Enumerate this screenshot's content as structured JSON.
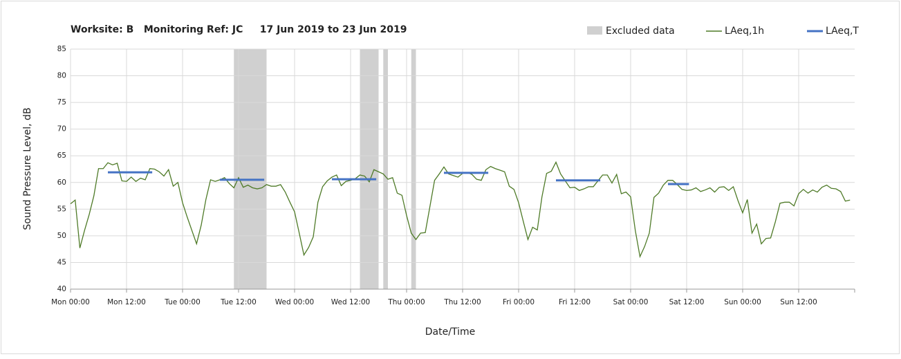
{
  "chart_data": {
    "type": "line",
    "title": "Worksite: B   Monitoring Ref: JC     17 Jun 2019 to 23 Jun 2019",
    "xlabel": "Date/Time",
    "ylabel": "Sound Pressure Level, dB",
    "xlim": [
      0,
      168
    ],
    "ylim": [
      40,
      85
    ],
    "yticks": [
      40,
      45,
      50,
      55,
      60,
      65,
      70,
      75,
      80,
      85
    ],
    "xticks": [
      {
        "value": 0,
        "label": "Mon 00:00"
      },
      {
        "value": 12,
        "label": "Mon 12:00"
      },
      {
        "value": 24,
        "label": "Tue 00:00"
      },
      {
        "value": 36,
        "label": "Tue 12:00"
      },
      {
        "value": 48,
        "label": "Wed 00:00"
      },
      {
        "value": 60,
        "label": "Wed 12:00"
      },
      {
        "value": 72,
        "label": "Thu 00:00"
      },
      {
        "value": 84,
        "label": "Thu 12:00"
      },
      {
        "value": 96,
        "label": "Fri 00:00"
      },
      {
        "value": 108,
        "label": "Fri 12:00"
      },
      {
        "value": 120,
        "label": "Sat 00:00"
      },
      {
        "value": 132,
        "label": "Sat 12:00"
      },
      {
        "value": 144,
        "label": "Sun 00:00"
      },
      {
        "value": 156,
        "label": "Sun 12:00"
      }
    ],
    "grid": true,
    "excluded": {
      "name": "Excluded data",
      "color": "#d0d0d0",
      "ranges": [
        [
          35,
          42
        ],
        [
          62,
          66
        ],
        [
          67,
          68
        ],
        [
          73,
          74
        ]
      ]
    },
    "series": [
      {
        "name": "LAeq,1h",
        "color": "#4e7a27",
        "x": [
          0,
          1,
          2,
          3,
          4,
          5,
          6,
          7,
          8,
          9,
          10,
          11,
          12,
          13,
          14,
          15,
          16,
          17,
          18,
          19,
          20,
          21,
          22,
          23,
          24,
          25,
          26,
          27,
          28,
          29,
          30,
          31,
          32,
          33,
          34,
          35,
          36,
          37,
          38,
          39,
          40,
          41,
          42,
          43,
          44,
          45,
          46,
          47,
          48,
          49,
          50,
          51,
          52,
          53,
          54,
          55,
          56,
          57,
          58,
          59,
          60,
          61,
          62,
          63,
          64,
          65,
          66,
          67,
          68,
          69,
          70,
          71,
          72,
          73,
          74,
          75,
          76,
          77,
          78,
          79,
          80,
          81,
          82,
          83,
          84,
          85,
          86,
          87,
          88,
          89,
          90,
          91,
          92,
          93,
          94,
          95,
          96,
          97,
          98,
          99,
          100,
          101,
          102,
          103,
          104,
          105,
          106,
          107,
          108,
          109,
          110,
          111,
          112,
          113,
          114,
          115,
          116,
          117,
          118,
          119,
          120,
          121,
          122,
          123,
          124,
          125,
          126,
          127,
          128,
          129,
          130,
          131,
          132,
          133,
          134,
          135,
          136,
          137,
          138,
          139,
          140,
          141,
          142,
          143,
          144,
          145,
          146,
          147,
          148,
          149,
          150,
          151,
          152,
          153,
          154,
          155,
          156,
          157,
          158,
          159,
          160,
          161,
          162,
          163,
          164,
          165,
          166,
          167
        ],
        "values": [
          56,
          56.7,
          47.7,
          51,
          54,
          57.5,
          62.6,
          62.6,
          63.7,
          63.3,
          63.6,
          60.3,
          60.2,
          61,
          60.2,
          60.8,
          60.5,
          62.6,
          62.5,
          62,
          61.2,
          62.4,
          59.3,
          60,
          56.2,
          53.5,
          51,
          48.5,
          52,
          56.8,
          60.5,
          60.2,
          60.5,
          60.9,
          59.8,
          59,
          60.9,
          59.1,
          59.5,
          59,
          58.8,
          59,
          59.6,
          59.3,
          59.3,
          59.6,
          58.2,
          56.3,
          54.5,
          50.5,
          46.4,
          47.8,
          49.8,
          56.3,
          59.2,
          60.3,
          61,
          61.4,
          59.4,
          60.2,
          60.4,
          60.7,
          61.4,
          61.2,
          60.1,
          62.4,
          62,
          61.6,
          60.6,
          60.9,
          58,
          57.6,
          53.8,
          50.5,
          49.3,
          50.5,
          50.6,
          55.5,
          60.4,
          61.6,
          62.9,
          61.6,
          61.3,
          61,
          61.7,
          61.9,
          61.5,
          60.6,
          60.4,
          62.4,
          63,
          62.6,
          62.3,
          62,
          59.3,
          58.7,
          56.2,
          52.7,
          49.3,
          51.6,
          51.1,
          57.3,
          61.7,
          62.1,
          63.8,
          61.6,
          60.3,
          59,
          59.1,
          58.5,
          58.8,
          59.2,
          59.2,
          60.3,
          61.4,
          61.4,
          59.9,
          61.5,
          57.9,
          58.2,
          57.3,
          51,
          46.1,
          48,
          50.5,
          57.2,
          58,
          59.5,
          60.4,
          60.4,
          59.6,
          58.7,
          58.5,
          58.6,
          59,
          58.3,
          58.6,
          59,
          58.2,
          59.1,
          59.2,
          58.5,
          59.2,
          56.6,
          54.3,
          56.8,
          50.5,
          52.2,
          48.5,
          49.5,
          49.6,
          52.6,
          56.1,
          56.3,
          56.3,
          55.6,
          57.9,
          58.7,
          58,
          58.6,
          58.2,
          59.1,
          59.5,
          58.9,
          58.8,
          58.3,
          56.5,
          56.7
        ]
      },
      {
        "name": "LAeq,T",
        "color": "#4472c4",
        "segments": [
          {
            "x": [
              8,
              17.5
            ],
            "value": 61.9
          },
          {
            "x": [
              32,
              41.5
            ],
            "value": 60.5
          },
          {
            "x": [
              56,
              65.5
            ],
            "value": 60.6
          },
          {
            "x": [
              80,
              89.5
            ],
            "value": 61.8
          },
          {
            "x": [
              104,
              113.5
            ],
            "value": 60.4
          },
          {
            "x": [
              128,
              132.5
            ],
            "value": 59.7
          }
        ]
      }
    ]
  }
}
